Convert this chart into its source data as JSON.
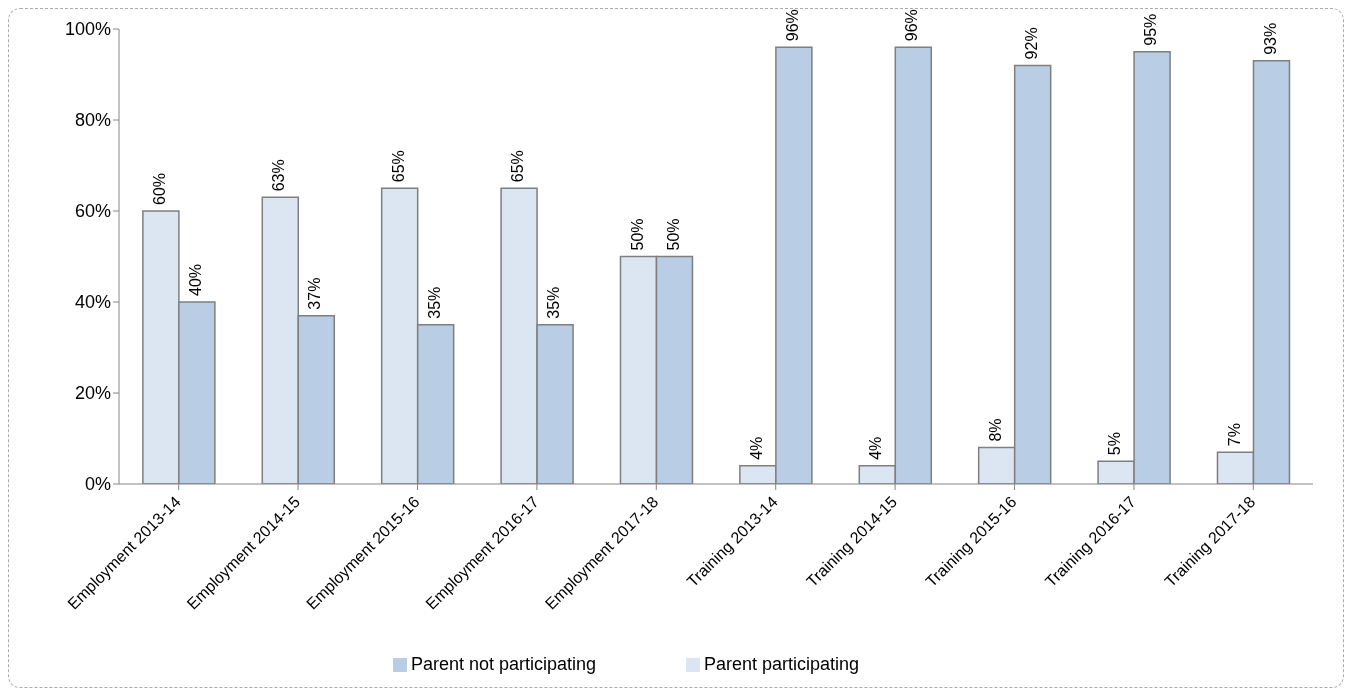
{
  "chart_data": {
    "type": "bar",
    "categories": [
      "Employment 2013-14",
      "Employment 2014-15",
      "Employment 2015-16",
      "Employment 2016-17",
      "Employment 2017-18",
      "Training 2013-14",
      "Training 2014-15",
      "Training 2015-16",
      "Training 2016-17",
      "Training 2017-18"
    ],
    "series": [
      {
        "name": "Parent participating",
        "color": "#dce6f2",
        "values": [
          60,
          63,
          65,
          65,
          50,
          4,
          4,
          8,
          5,
          7
        ],
        "value_labels": [
          "60%",
          "63%",
          "65%",
          "65%",
          "50%",
          "4%",
          "4%",
          "8%",
          "5%",
          "7%"
        ]
      },
      {
        "name": "Parent not participating",
        "color": "#b9cde5",
        "values": [
          40,
          37,
          35,
          35,
          50,
          96,
          96,
          92,
          95,
          93
        ],
        "value_labels": [
          "40%",
          "37%",
          "35%",
          "35%",
          "50%",
          "96%",
          "96%",
          "92%",
          "95%",
          "93%"
        ]
      }
    ],
    "ylim": [
      0,
      100
    ],
    "yticks": [
      {
        "value": 0,
        "label": "0%"
      },
      {
        "value": 20,
        "label": "20%"
      },
      {
        "value": 40,
        "label": "40%"
      },
      {
        "value": 60,
        "label": "60%"
      },
      {
        "value": 80,
        "label": "80%"
      },
      {
        "value": 100,
        "label": "100%"
      }
    ],
    "grid": false,
    "legend": "bottom"
  }
}
